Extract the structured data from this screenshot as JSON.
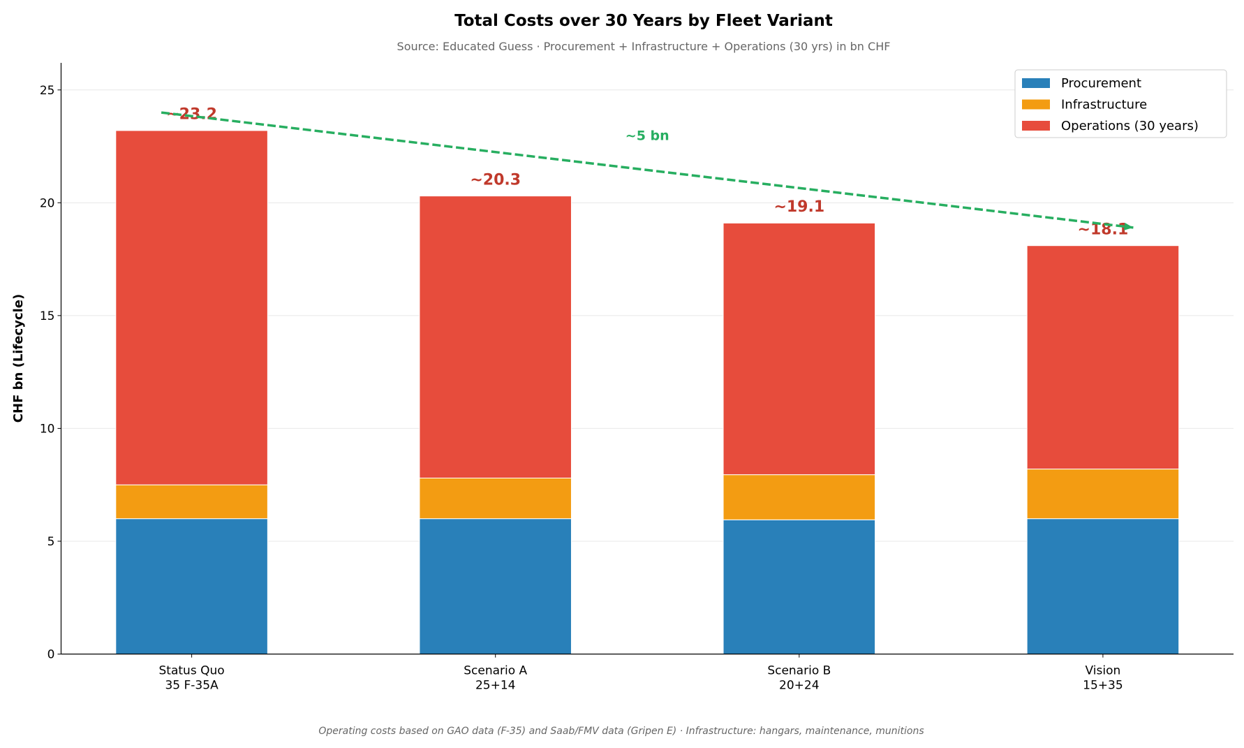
{
  "chart_data": {
    "type": "bar",
    "stacked": true,
    "title": "Total Costs over 30 Years by Fleet Variant",
    "subtitle": "Source: Educated Guess · Procurement + Infrastructure + Operations (30 yrs) in bn CHF",
    "footnote": "Operating costs based on GAO data (F-35) and Saab/FMV data (Gripen E) · Infrastructure: hangars, maintenance, munitions",
    "xlabel": "",
    "ylabel": "CHF bn (Lifecycle)",
    "ylim": [
      0,
      26.2
    ],
    "yticks": [
      0,
      5,
      10,
      15,
      20,
      25
    ],
    "grid": "y",
    "legend": "top-right",
    "categories": [
      {
        "line1": "Status Quo",
        "line2": "35 F-35A"
      },
      {
        "line1": "Scenario A",
        "line2": "25+14"
      },
      {
        "line1": "Scenario B",
        "line2": "20+24"
      },
      {
        "line1": "Vision",
        "line2": "15+35"
      }
    ],
    "series": [
      {
        "name": "Procurement",
        "color": "#2980b9",
        "values": [
          6.0,
          6.0,
          5.95,
          6.0
        ]
      },
      {
        "name": "Infrastructure",
        "color": "#f39c12",
        "values": [
          1.5,
          1.8,
          2.0,
          2.2
        ]
      },
      {
        "name": "Operations (30 years)",
        "color": "#e74c3c",
        "values": [
          15.7,
          12.5,
          11.15,
          9.9
        ]
      }
    ],
    "total_labels": [
      "~23.2",
      "~20.3",
      "~19.1",
      "~18.1"
    ],
    "total_label_color": "#c0392b",
    "trend_arrow": {
      "from": [
        -0.1,
        24.0
      ],
      "to": [
        3.1,
        18.9
      ],
      "color": "#27ae60",
      "label": "~5 bn",
      "label_pos": [
        1.5,
        23.0
      ]
    }
  }
}
